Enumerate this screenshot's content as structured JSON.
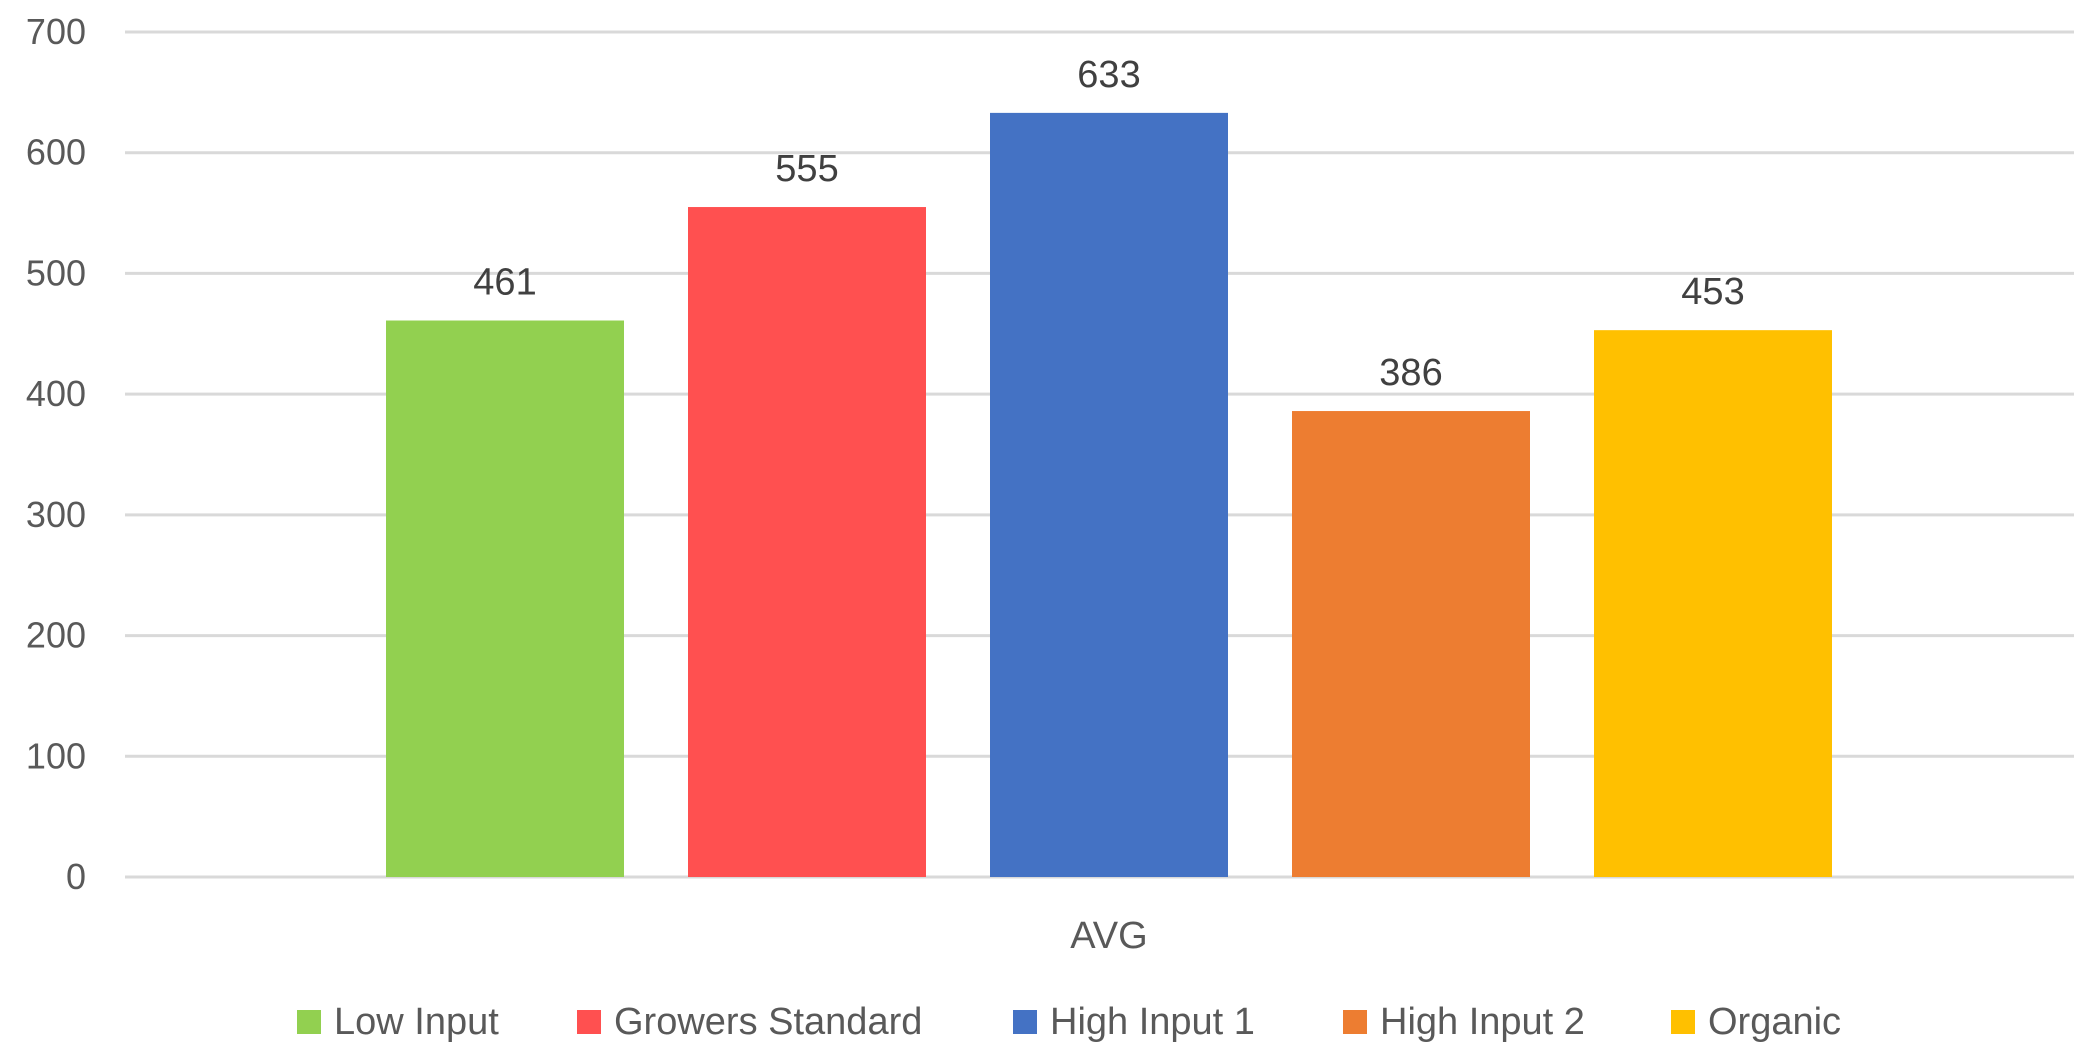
{
  "chart_data": {
    "type": "bar",
    "categories": [
      "AVG"
    ],
    "series": [
      {
        "name": "Low Input",
        "values": [
          461
        ],
        "color": "#92D050"
      },
      {
        "name": "Growers Standard",
        "values": [
          555
        ],
        "color": "#FF5050"
      },
      {
        "name": "High Input 1",
        "values": [
          633
        ],
        "color": "#4472C4"
      },
      {
        "name": "High Input 2",
        "values": [
          386
        ],
        "color": "#ED7D31"
      },
      {
        "name": "Organic",
        "values": [
          453
        ],
        "color": "#FFC000"
      }
    ],
    "title": "",
    "xlabel": "",
    "ylabel": "",
    "ylim": [
      0,
      700
    ],
    "yticks": [
      0,
      100,
      200,
      300,
      400,
      500,
      600,
      700
    ],
    "grid": true,
    "legend_position": "bottom",
    "data_labels": true,
    "gridline_color": "#D9D9D9"
  }
}
